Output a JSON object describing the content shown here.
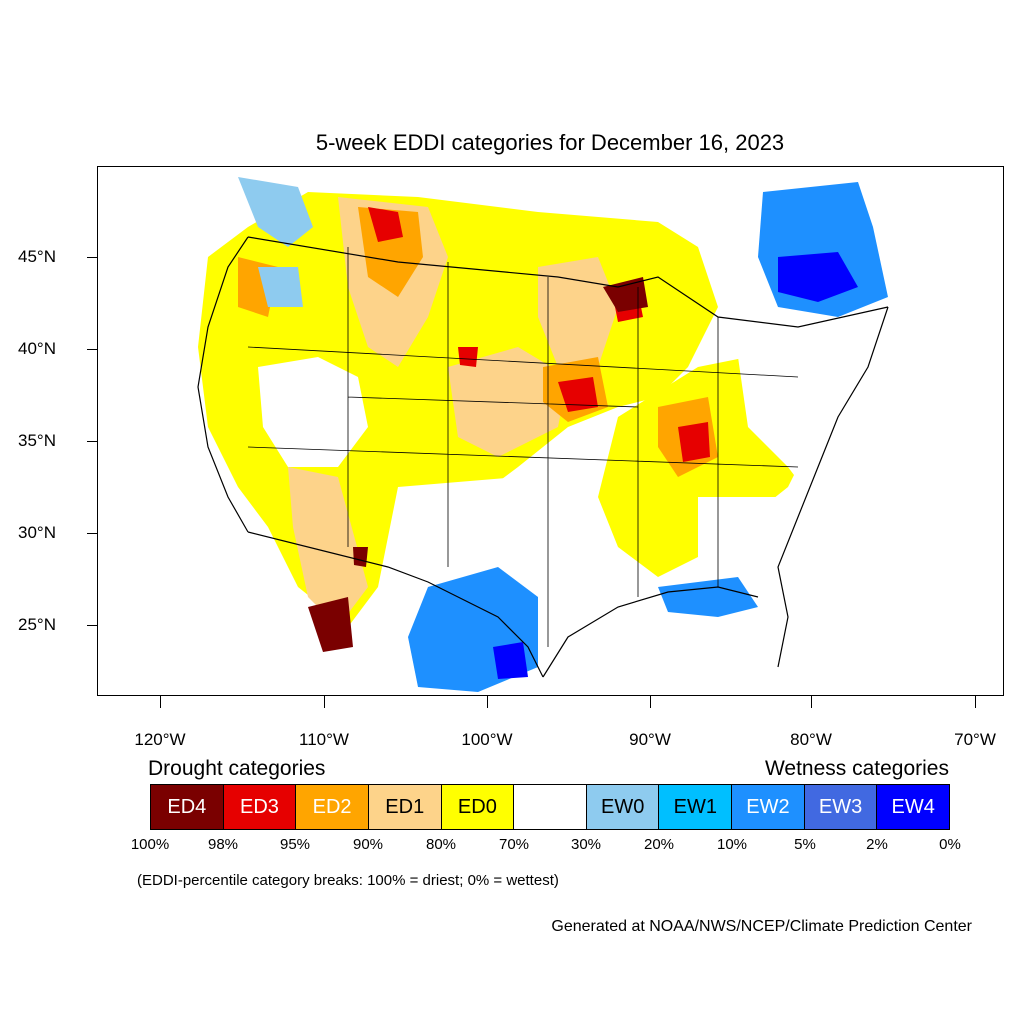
{
  "title": "5-week EDDI categories for December 16, 2023",
  "y_axis": [
    "45°N",
    "40°N",
    "35°N",
    "30°N",
    "25°N"
  ],
  "x_axis": [
    "120°W",
    "110°W",
    "100°W",
    "90°W",
    "80°W",
    "70°W"
  ],
  "legend": {
    "drought_heading": "Drought categories",
    "wetness_heading": "Wetness categories",
    "categories": [
      {
        "label": "ED4",
        "color": "#7a0000",
        "text_color": "#ffffff"
      },
      {
        "label": "ED3",
        "color": "#e60000",
        "text_color": "#ffffff"
      },
      {
        "label": "ED2",
        "color": "#ffa500",
        "text_color": "#ffffff"
      },
      {
        "label": "ED1",
        "color": "#fdd38a",
        "text_color": "#000000"
      },
      {
        "label": "ED0",
        "color": "#ffff00",
        "text_color": "#000000"
      },
      {
        "label": "",
        "color": "#ffffff",
        "text_color": "#000000"
      },
      {
        "label": "EW0",
        "color": "#8ecbef",
        "text_color": "#000000"
      },
      {
        "label": "EW1",
        "color": "#00bfff",
        "text_color": "#000000"
      },
      {
        "label": "EW2",
        "color": "#1e90ff",
        "text_color": "#ffffff"
      },
      {
        "label": "EW3",
        "color": "#4169e1",
        "text_color": "#ffffff"
      },
      {
        "label": "EW4",
        "color": "#0000ff",
        "text_color": "#ffffff"
      }
    ],
    "breaks": [
      "100%",
      "98%",
      "95%",
      "90%",
      "80%",
      "70%",
      "30%",
      "20%",
      "10%",
      "5%",
      "2%",
      "0%"
    ]
  },
  "note": "(EDDI-percentile category breaks: 100% = driest; 0% = wettest)",
  "credit": "Generated at NOAA/NWS/NCEP/Climate Prediction Center"
}
